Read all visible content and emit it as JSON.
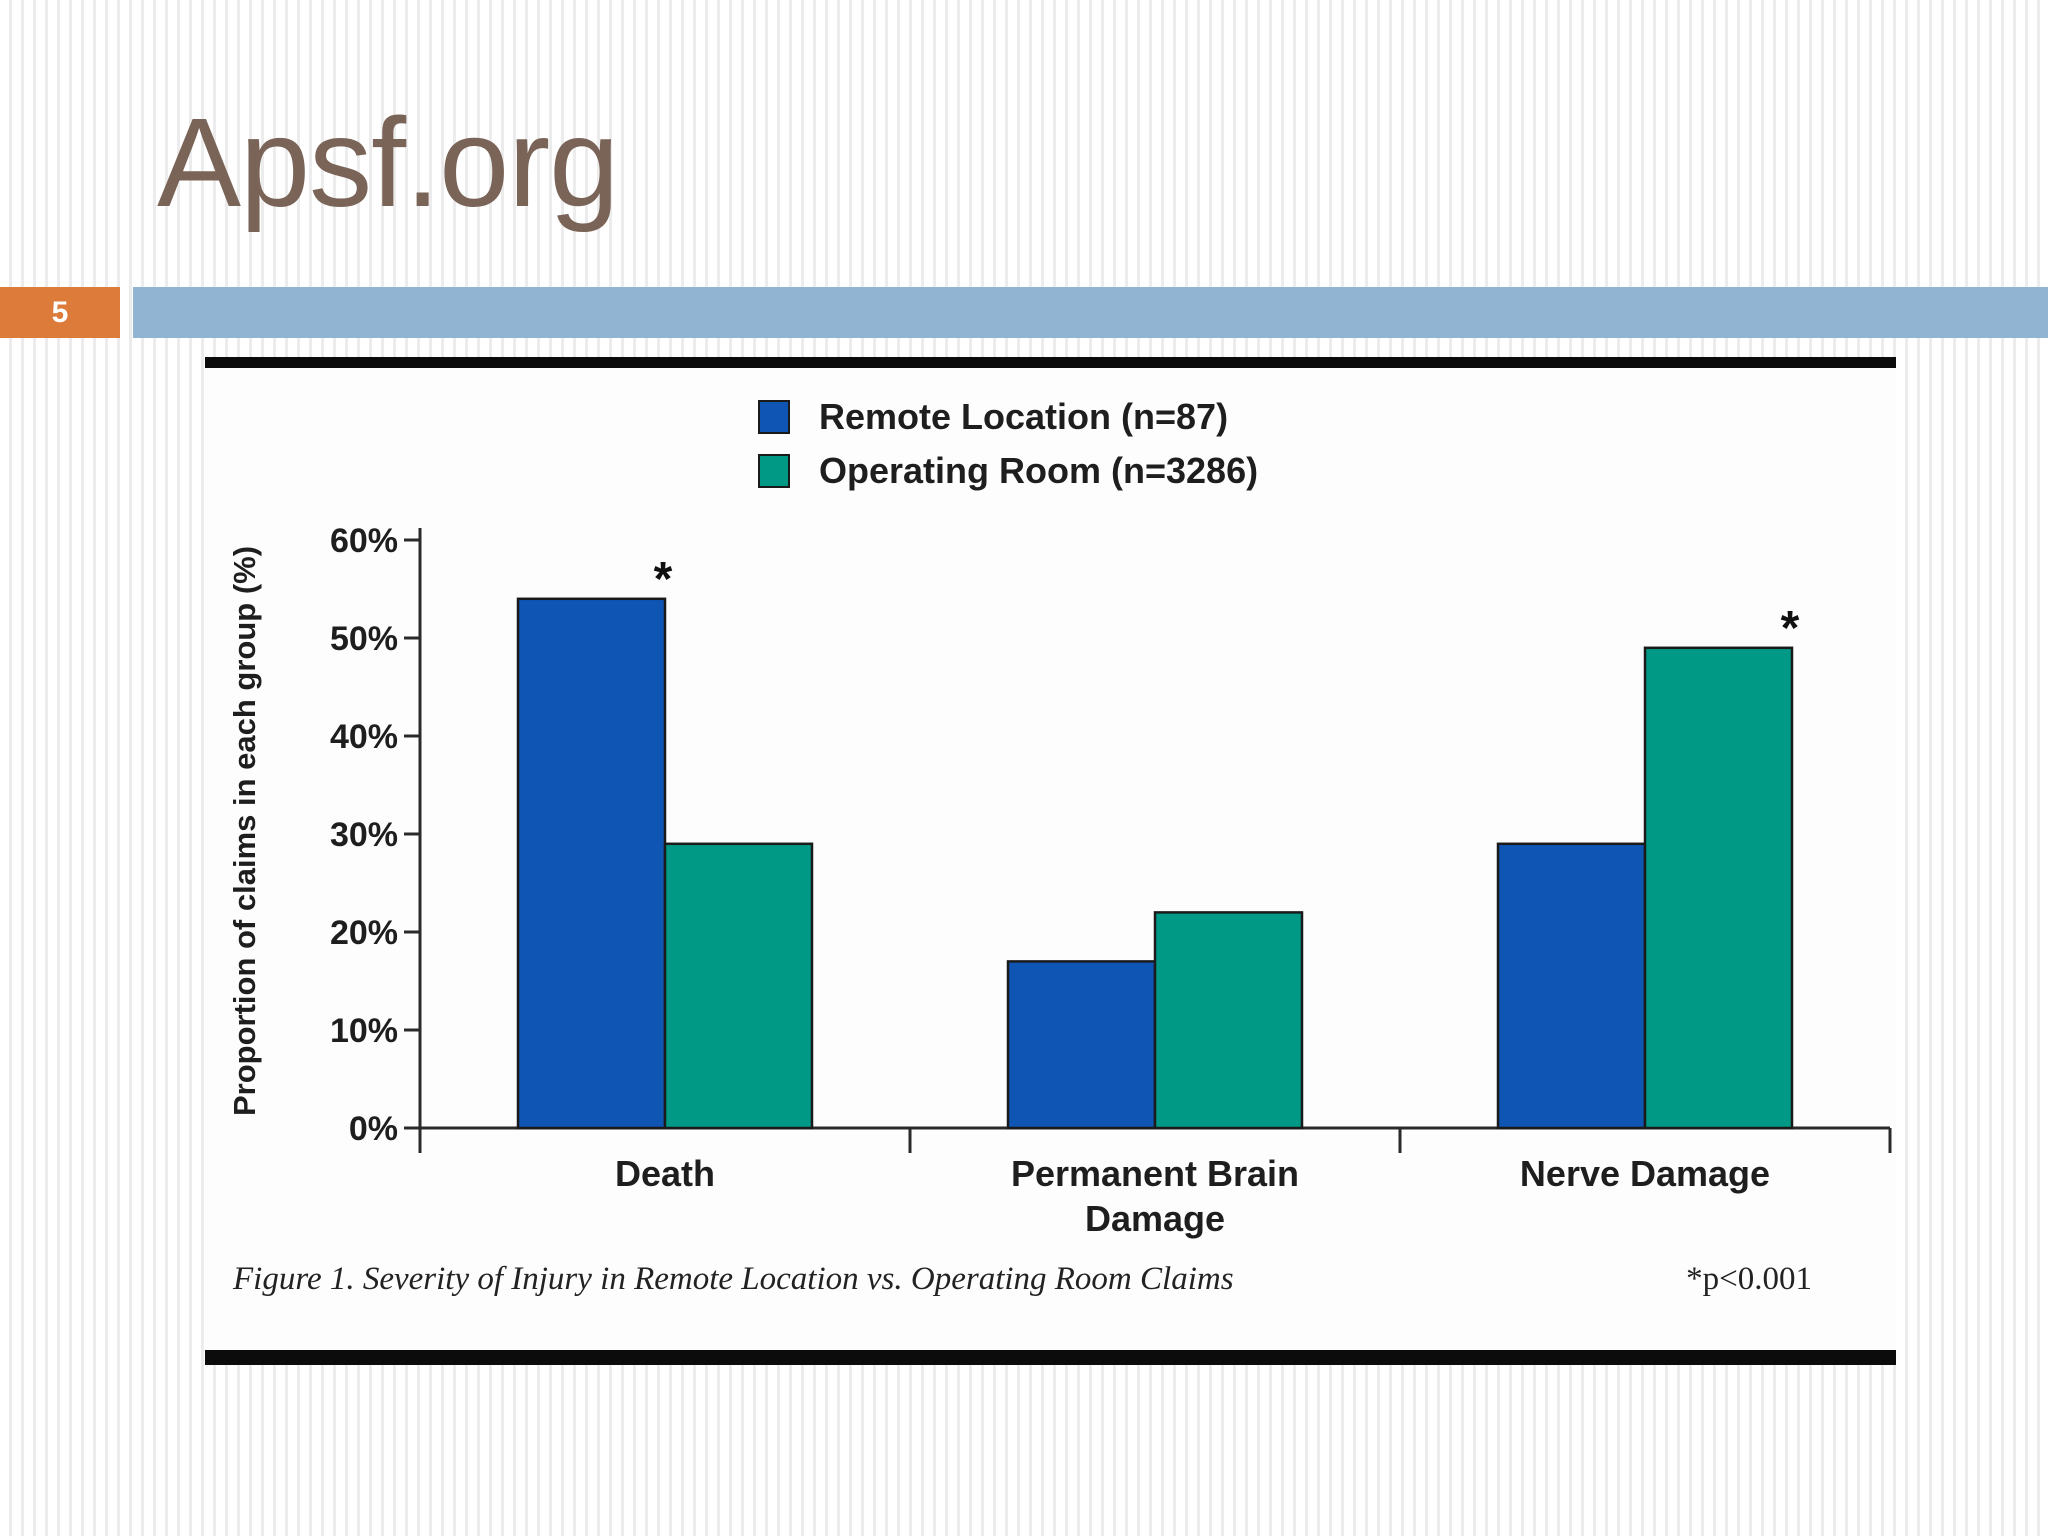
{
  "slide": {
    "title": "Apsf.org",
    "number": "5",
    "colors": {
      "title": "#7a6458",
      "number_box": "#dd7b3a",
      "band": "#92b4d3"
    }
  },
  "chart_data": {
    "type": "bar",
    "categories": [
      "Death",
      "Permanent Brain Damage",
      "Nerve Damage"
    ],
    "category_lines": [
      [
        "Death"
      ],
      [
        "Permanent Brain",
        "Damage"
      ],
      [
        "Nerve Damage"
      ]
    ],
    "series": [
      {
        "name": "Remote Location (n=87)",
        "color": "#0f55b4",
        "values": [
          54,
          17,
          29
        ]
      },
      {
        "name": "Operating Room (n=3286)",
        "color": "#009985",
        "values": [
          29,
          22,
          49
        ]
      }
    ],
    "significance_marks": [
      {
        "category_index": 0,
        "series_index": 0,
        "symbol": "*"
      },
      {
        "category_index": 2,
        "series_index": 1,
        "symbol": "*"
      }
    ],
    "ylabel": "Proportion of claims in each group (%)",
    "y_ticks": [
      "0%",
      "10%",
      "20%",
      "30%",
      "40%",
      "50%",
      "60%"
    ],
    "ylim": [
      0,
      60
    ],
    "legend_position": "top-center",
    "grid": false,
    "caption": "Figure 1. Severity of Injury in Remote Location vs. Operating Room Claims",
    "footnote": "*p<0.001"
  }
}
